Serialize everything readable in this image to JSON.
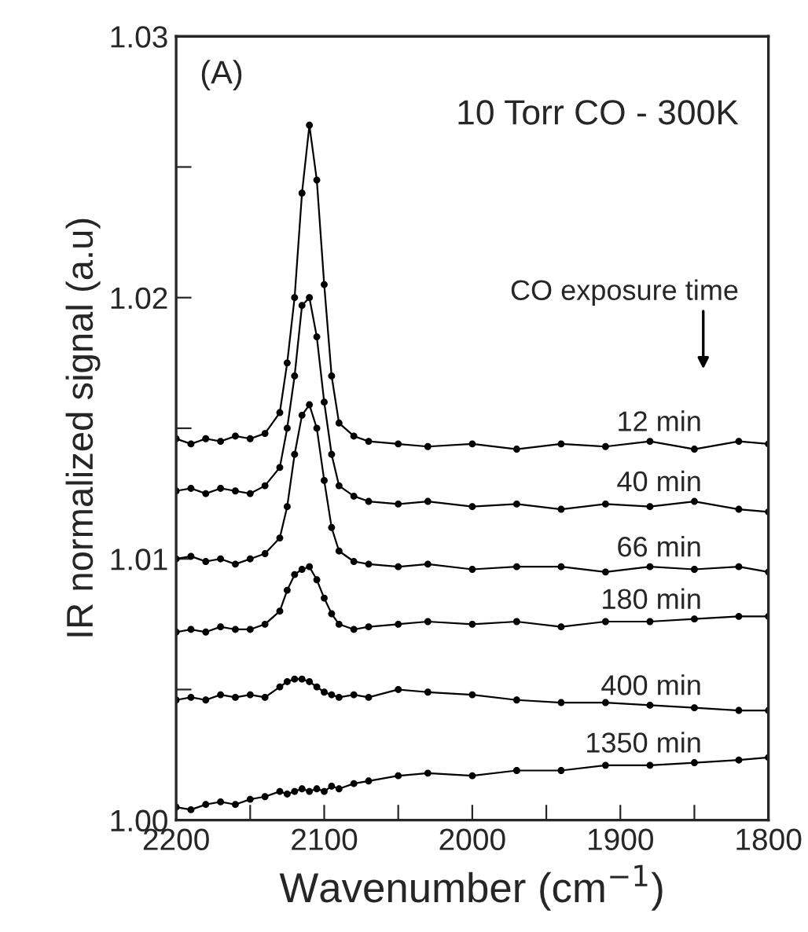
{
  "chart_data": {
    "type": "line",
    "xlabel": "Wavenumber (cm$^{−1}$)",
    "ylabel": "IR normalized signal (a.u)",
    "annotations": [
      "(A)",
      "10 Torr CO - 300K",
      "CO exposure time"
    ],
    "x": [
      2200,
      2190,
      2180,
      2170,
      2160,
      2150,
      2140,
      2130,
      2125,
      2120,
      2115,
      2110,
      2105,
      2100,
      2095,
      2090,
      2080,
      2070,
      2050,
      2030,
      2000,
      1970,
      1940,
      1910,
      1880,
      1850,
      1820,
      1800
    ],
    "series": [
      {
        "name": "12 min",
        "color": "#000000",
        "values": [
          1.0146,
          1.0144,
          1.0146,
          1.0145,
          1.0147,
          1.0146,
          1.0148,
          1.0156,
          1.0175,
          1.02,
          1.024,
          1.0266,
          1.0245,
          1.0205,
          1.017,
          1.0152,
          1.0147,
          1.0145,
          1.0144,
          1.0143,
          1.0144,
          1.0142,
          1.0144,
          1.0143,
          1.0145,
          1.0142,
          1.0145,
          1.0144
        ]
      },
      {
        "name": "40 min",
        "color": "#000000",
        "values": [
          1.0126,
          1.0127,
          1.0125,
          1.0127,
          1.0126,
          1.0125,
          1.0128,
          1.0135,
          1.015,
          1.017,
          1.0197,
          1.02,
          1.0185,
          1.016,
          1.014,
          1.0128,
          1.0124,
          1.0122,
          1.0121,
          1.0122,
          1.012,
          1.0121,
          1.0119,
          1.0121,
          1.012,
          1.0122,
          1.0119,
          1.0118
        ]
      },
      {
        "name": "66 min",
        "color": "#000000",
        "values": [
          1.01,
          1.0101,
          1.0099,
          1.01,
          1.0098,
          1.01,
          1.0102,
          1.0108,
          1.012,
          1.014,
          1.0155,
          1.0159,
          1.015,
          1.013,
          1.0112,
          1.0103,
          1.0099,
          1.0098,
          1.0097,
          1.0098,
          1.0096,
          1.0097,
          1.0097,
          1.0095,
          1.0097,
          1.0096,
          1.0097,
          1.0095
        ]
      },
      {
        "name": "180 min",
        "color": "#000000",
        "values": [
          1.0072,
          1.0073,
          1.0072,
          1.0074,
          1.0073,
          1.0073,
          1.0075,
          1.008,
          1.0088,
          1.0094,
          1.0096,
          1.0097,
          1.0092,
          1.0085,
          1.0079,
          1.0075,
          1.0073,
          1.0074,
          1.0075,
          1.0076,
          1.0075,
          1.0076,
          1.0074,
          1.0076,
          1.0076,
          1.0077,
          1.0078,
          1.0078
        ]
      },
      {
        "name": "400 min",
        "color": "#000000",
        "values": [
          1.0046,
          1.0047,
          1.0046,
          1.0048,
          1.0047,
          1.0048,
          1.0047,
          1.0051,
          1.0053,
          1.0054,
          1.0054,
          1.0053,
          1.0051,
          1.0049,
          1.0048,
          1.0047,
          1.0048,
          1.0047,
          1.005,
          1.0049,
          1.0048,
          1.0046,
          1.0045,
          1.0045,
          1.0044,
          1.0043,
          1.0042,
          1.0042
        ]
      },
      {
        "name": "1350 min",
        "color": "#000000",
        "values": [
          1.0005,
          1.0004,
          1.0006,
          1.0007,
          1.0006,
          1.0008,
          1.0009,
          1.0011,
          1.001,
          1.0011,
          1.0012,
          1.0011,
          1.0012,
          1.0011,
          1.0013,
          1.0012,
          1.0014,
          1.0015,
          1.0017,
          1.0018,
          1.0017,
          1.0019,
          1.0019,
          1.0021,
          1.0021,
          1.0022,
          1.0023,
          1.0024
        ]
      }
    ],
    "xlim": [
      2200,
      1800
    ],
    "ylim": [
      1.0,
      1.03
    ],
    "xticks": [
      2200,
      {
        "value": 2150,
        "label": null
      },
      2100,
      {
        "value": 2050,
        "label": null
      },
      2000,
      {
        "value": 1950,
        "label": null
      },
      1900,
      {
        "value": 1850,
        "label": null
      },
      1800
    ],
    "yticks": [
      {
        "value": 1.0,
        "label": "1.00"
      },
      {
        "value": 1.005,
        "label": null
      },
      1.01,
      {
        "value": 1.015,
        "label": null
      },
      1.02,
      {
        "value": 1.025,
        "label": null
      },
      1.03
    ],
    "marker": "circle",
    "line_style": "solid",
    "grid": false,
    "legend": false
  }
}
